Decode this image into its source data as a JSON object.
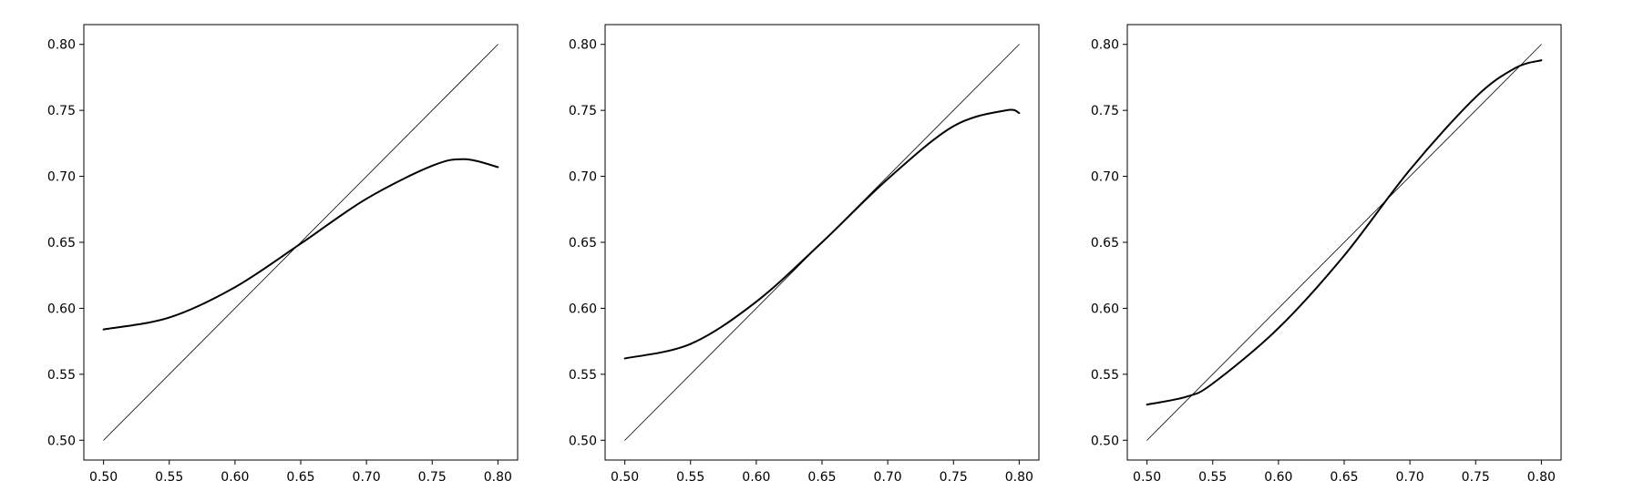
{
  "chart_data": [
    {
      "type": "line",
      "title": "",
      "xlabel": "",
      "ylabel": "",
      "xlim": [
        0.485,
        0.815
      ],
      "ylim": [
        0.485,
        0.815
      ],
      "xticks": [
        "0.50",
        "0.55",
        "0.60",
        "0.65",
        "0.70",
        "0.75",
        "0.80"
      ],
      "yticks": [
        "0.50",
        "0.55",
        "0.60",
        "0.65",
        "0.70",
        "0.75",
        "0.80"
      ],
      "grid": false,
      "series": [
        {
          "style": "thin",
          "color": "#000000",
          "x": [
            0.5,
            0.8
          ],
          "y": [
            0.5,
            0.8
          ]
        },
        {
          "style": "thick",
          "color": "#000000",
          "x": [
            0.5,
            0.55,
            0.6,
            0.65,
            0.7,
            0.75,
            0.775,
            0.8
          ],
          "y": [
            0.584,
            0.593,
            0.616,
            0.649,
            0.683,
            0.708,
            0.713,
            0.707
          ]
        }
      ]
    },
    {
      "type": "line",
      "title": "",
      "xlabel": "",
      "ylabel": "",
      "xlim": [
        0.485,
        0.815
      ],
      "ylim": [
        0.485,
        0.815
      ],
      "xticks": [
        "0.50",
        "0.55",
        "0.60",
        "0.65",
        "0.70",
        "0.75",
        "0.80"
      ],
      "yticks": [
        "0.50",
        "0.55",
        "0.60",
        "0.65",
        "0.70",
        "0.75",
        "0.80"
      ],
      "grid": false,
      "series": [
        {
          "style": "thin",
          "color": "#000000",
          "x": [
            0.5,
            0.8
          ],
          "y": [
            0.5,
            0.8
          ]
        },
        {
          "style": "thick",
          "color": "#000000",
          "x": [
            0.5,
            0.55,
            0.6,
            0.65,
            0.7,
            0.75,
            0.79,
            0.8
          ],
          "y": [
            0.562,
            0.573,
            0.605,
            0.65,
            0.698,
            0.738,
            0.75,
            0.748
          ]
        }
      ]
    },
    {
      "type": "line",
      "title": "",
      "xlabel": "",
      "ylabel": "",
      "xlim": [
        0.485,
        0.815
      ],
      "ylim": [
        0.485,
        0.815
      ],
      "xticks": [
        "0.50",
        "0.55",
        "0.60",
        "0.65",
        "0.70",
        "0.75",
        "0.80"
      ],
      "yticks": [
        "0.50",
        "0.55",
        "0.60",
        "0.65",
        "0.70",
        "0.75",
        "0.80"
      ],
      "grid": false,
      "series": [
        {
          "style": "thin",
          "color": "#000000",
          "x": [
            0.5,
            0.8
          ],
          "y": [
            0.5,
            0.8
          ]
        },
        {
          "style": "thick",
          "color": "#000000",
          "x": [
            0.5,
            0.53,
            0.55,
            0.6,
            0.65,
            0.7,
            0.75,
            0.78,
            0.8
          ],
          "y": [
            0.527,
            0.533,
            0.543,
            0.585,
            0.64,
            0.705,
            0.76,
            0.782,
            0.788
          ]
        }
      ]
    }
  ]
}
